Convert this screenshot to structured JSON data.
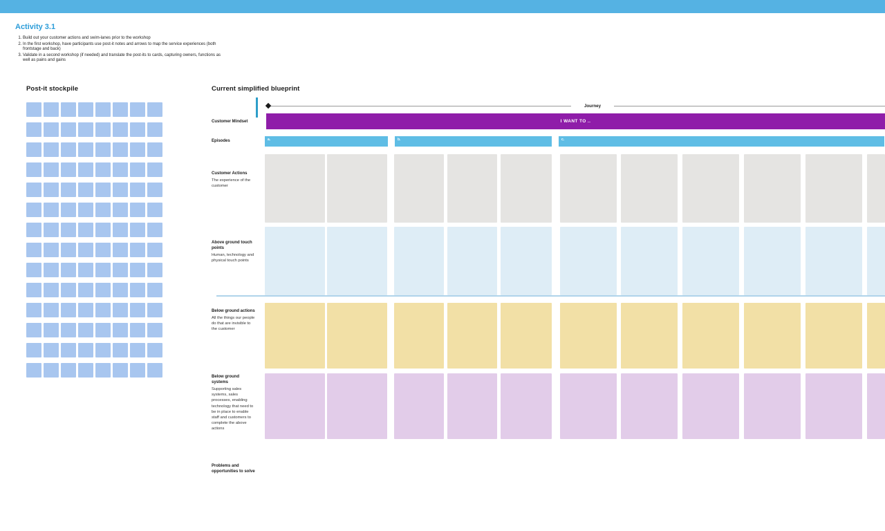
{
  "app": {
    "top_bar_color": "#55B2E3"
  },
  "activity": {
    "title": "Activity 3.1",
    "title_color": "#2B9CD8",
    "steps": [
      "Build out your customer actions and swim-lanes prior to the workshop",
      "In the first workshop, have participants use post-it notes and arrows to map the service experiences (both frontstage and back)",
      "Validate in a second workshop (if needed) and translate the post-its to cards, capturing owners, functions as well as pains and gains"
    ]
  },
  "stockpile": {
    "title": "Post-it stockpile",
    "rows": 14,
    "cols": 8,
    "postit_color": "#A8C6EF"
  },
  "blueprint": {
    "title": "Current simplified blueprint",
    "journey": {
      "label": "Journey",
      "line_color": "#999999"
    },
    "mindset": {
      "label": "Customer Mindset",
      "bar_text": "I WANT TO ..",
      "bar_color": "#8F1DA9"
    },
    "episodes": {
      "label": "Episodes",
      "items": [
        "a.",
        "b.",
        "c."
      ],
      "bar_color": "#5FBDE5"
    },
    "line_of_visibility_color": "#AFD3EA",
    "lanes": [
      {
        "id": "customer-actions",
        "title": "Customer Actions",
        "desc": "The experience of the customer",
        "color": "#E5E4E2"
      },
      {
        "id": "above-ground-touch-points",
        "title": "Above ground touch points",
        "desc": "Human, technology and physical touch points",
        "color": "#DEEDF6"
      },
      {
        "id": "below-ground-actions",
        "title": "Below ground actions",
        "desc": "All the things our people do that are invisible to the customer",
        "color": "#F2E0A6"
      },
      {
        "id": "below-ground-systems",
        "title": "Below ground systems",
        "desc": "Supporting sales systems, sales processes, enabling technology that need to be in place to enable staff and customers to complete the above actions",
        "color": "#E2CCE9"
      },
      {
        "id": "problems-opportunities",
        "title": "Problems and opportunities to solve",
        "desc": "",
        "color": ""
      }
    ]
  }
}
